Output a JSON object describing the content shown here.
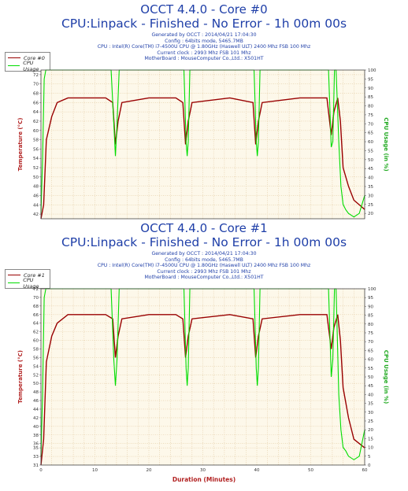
{
  "colors": {
    "core": "#990000",
    "cpu": "#00dd00",
    "title": "#1f3fa8",
    "axis_label": "#b22222",
    "plot_bg": "#fdf8ea",
    "grid": "#e2c9a0"
  },
  "x_axis": {
    "label": "Duration (Minutes)",
    "ticks": [
      0,
      10,
      20,
      30,
      40,
      50,
      60
    ]
  },
  "panels": [
    {
      "title": "OCCT 4.4.0 - Core #0",
      "subtitle": "CPU:Linpack - Finished - No Error - 1h 00m 00s",
      "info": [
        "Generated by OCCT : 2014/04/21 17:04:30",
        "Config : 64bits mode, 5465.7MB",
        "CPU : Intel(R) Core(TM) i7-4500U CPU @ 1.80GHz (Haswell ULT) 2400 Mhz FSB 100 Mhz",
        "Current clock : 2993 Mhz FSB 101 Mhz",
        "MotherBoard : MouseComputer Co.,Ltd.: X501HT"
      ],
      "legend": [
        "Core #0",
        "CPU Usage"
      ],
      "left_label": "Temperature (°C)",
      "right_label": "CPU Usage (in %)",
      "y_left_ticks": [
        42,
        44,
        46,
        48,
        50,
        52,
        54,
        56,
        58,
        60,
        62,
        64,
        66,
        68,
        70,
        72
      ],
      "y_right_ticks": [
        20,
        25,
        30,
        35,
        40,
        45,
        50,
        55,
        60,
        65,
        70,
        75,
        80,
        85,
        90,
        95,
        100
      ]
    },
    {
      "title": "OCCT 4.4.0 - Core #1",
      "subtitle": "CPU:Linpack - Finished - No Error - 1h 00m 00s",
      "info": [
        "Generated by OCCT : 2014/04/21 17:04:30",
        "Config : 64bits mode, 5465.7MB",
        "CPU : Intel(R) Core(TM) i7-4500U CPU @ 1.80GHz (Haswell ULT) 2400 Mhz FSB 100 Mhz",
        "Current clock : 2993 Mhz FSB 101 Mhz",
        "MotherBoard : MouseComputer Co.,Ltd.: X501HT"
      ],
      "legend": [
        "Core #1",
        "CPU Usage"
      ],
      "left_label": "Temperature (°C)",
      "right_label": "CPU Usage (in %)",
      "y_left_ticks": [
        31,
        33,
        35,
        36,
        38,
        40,
        42,
        44,
        46,
        48,
        50,
        52,
        54,
        56,
        58,
        60,
        62,
        64,
        66,
        68,
        70,
        72
      ],
      "y_right_ticks": [
        0,
        5,
        10,
        15,
        20,
        25,
        30,
        35,
        40,
        45,
        50,
        55,
        60,
        65,
        70,
        75,
        80,
        85,
        90,
        95,
        100
      ]
    }
  ],
  "chart_data": [
    {
      "type": "line",
      "title": "OCCT 4.4.0 - Core #0",
      "xlabel": "",
      "ylabel": "Temperature (°C)",
      "y2label": "CPU Usage (in %)",
      "xlim": [
        0,
        60
      ],
      "ylim": [
        41,
        73
      ],
      "y2lim": [
        17,
        100
      ],
      "series": [
        {
          "name": "Core #0",
          "axis": "left",
          "x": [
            0,
            0.5,
            1,
            2,
            3,
            5,
            8,
            12,
            13.3,
            13.8,
            14.3,
            15,
            20,
            25,
            26.3,
            26.8,
            27.3,
            28,
            35,
            39.3,
            39.8,
            40.3,
            41,
            48,
            53,
            53.8,
            54.3,
            55,
            55.5,
            56,
            57,
            58,
            59,
            60
          ],
          "y": [
            41,
            44,
            58,
            63,
            66,
            67,
            67,
            67,
            66,
            57,
            62,
            66,
            67,
            67,
            66,
            57,
            62,
            66,
            67,
            66,
            57,
            62,
            66,
            67,
            67,
            59,
            64,
            67,
            62,
            52,
            48,
            45,
            44,
            43
          ]
        },
        {
          "name": "CPU Usage",
          "axis": "right",
          "x": [
            0,
            0.3,
            0.6,
            0.9,
            13,
            13.5,
            13.8,
            14.1,
            14.5,
            26.5,
            26.9,
            27.1,
            27.3,
            27.6,
            39.5,
            39.9,
            40.1,
            40.3,
            40.6,
            53.3,
            53.8,
            54.1,
            54.4,
            54.7,
            55.2,
            55.6,
            56,
            56.5,
            57,
            58,
            59,
            60
          ],
          "y": [
            20,
            50,
            95,
            100,
            100,
            70,
            52,
            70,
            100,
            100,
            60,
            52,
            60,
            100,
            100,
            60,
            52,
            60,
            100,
            100,
            57,
            60,
            100,
            100,
            60,
            35,
            25,
            22,
            20,
            18,
            20,
            30
          ]
        }
      ]
    },
    {
      "type": "line",
      "title": "OCCT 4.4.0 - Core #1",
      "xlabel": "Duration (Minutes)",
      "ylabel": "Temperature (°C)",
      "y2label": "CPU Usage (in %)",
      "xlim": [
        0,
        60
      ],
      "ylim": [
        31,
        72
      ],
      "y2lim": [
        0,
        100
      ],
      "series": [
        {
          "name": "Core #1",
          "axis": "left",
          "x": [
            0,
            0.5,
            1,
            2,
            3,
            5,
            8,
            12,
            13.3,
            13.8,
            14.3,
            15,
            20,
            25,
            26.3,
            26.8,
            27.3,
            28,
            35,
            39.3,
            39.8,
            40.3,
            41,
            48,
            53,
            53.8,
            54.3,
            55,
            55.5,
            56,
            57,
            58,
            59,
            60
          ],
          "y": [
            31,
            37,
            55,
            61,
            64,
            66,
            66,
            66,
            65,
            56,
            61,
            65,
            66,
            66,
            65,
            56,
            61,
            65,
            66,
            65,
            56,
            61,
            65,
            66,
            66,
            58,
            63,
            66,
            60,
            49,
            42,
            37,
            36,
            35
          ]
        },
        {
          "name": "CPU Usage",
          "axis": "right",
          "x": [
            0,
            0.3,
            0.6,
            0.9,
            13,
            13.5,
            13.8,
            14.1,
            14.5,
            26.5,
            26.9,
            27.1,
            27.3,
            27.6,
            39.5,
            39.9,
            40.1,
            40.3,
            40.6,
            53.3,
            53.8,
            54.1,
            54.4,
            54.7,
            55.2,
            55.6,
            56,
            56.5,
            57,
            58,
            59,
            60
          ],
          "y": [
            5,
            40,
            95,
            100,
            100,
            60,
            45,
            60,
            100,
            100,
            55,
            45,
            55,
            100,
            100,
            55,
            45,
            55,
            100,
            100,
            50,
            60,
            100,
            100,
            40,
            20,
            10,
            8,
            5,
            3,
            5,
            20
          ]
        }
      ]
    }
  ]
}
